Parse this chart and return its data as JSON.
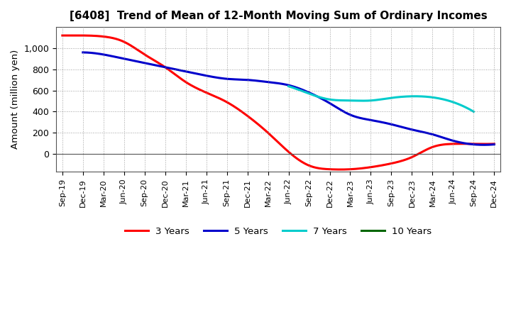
{
  "title": "[6408]  Trend of Mean of 12-Month Moving Sum of Ordinary Incomes",
  "ylabel": "Amount (million yen)",
  "background_color": "#ffffff",
  "grid_color": "#888888",
  "x_labels": [
    "Sep-19",
    "Dec-19",
    "Mar-20",
    "Jun-20",
    "Sep-20",
    "Dec-20",
    "Mar-21",
    "Jun-21",
    "Sep-21",
    "Dec-21",
    "Mar-22",
    "Jun-22",
    "Sep-22",
    "Dec-22",
    "Mar-23",
    "Jun-23",
    "Sep-23",
    "Dec-23",
    "Mar-24",
    "Jun-24",
    "Sep-24",
    "Dec-24"
  ],
  "ylim": [
    -170,
    1200
  ],
  "yticks": [
    0,
    200,
    400,
    600,
    800,
    1000
  ],
  "ytick_labels": [
    "0",
    "200",
    "400",
    "600",
    "800",
    "1,000"
  ],
  "series": {
    "3 Years": {
      "color": "#ff0000",
      "data": [
        1120,
        1120,
        1110,
        1060,
        940,
        820,
        680,
        580,
        490,
        360,
        200,
        20,
        -110,
        -145,
        -145,
        -125,
        -90,
        -30,
        65,
        95,
        95,
        95
      ]
    },
    "5 Years": {
      "color": "#0000cc",
      "data": [
        null,
        960,
        940,
        900,
        860,
        820,
        780,
        740,
        710,
        700,
        680,
        650,
        580,
        480,
        370,
        320,
        280,
        230,
        185,
        125,
        90,
        90
      ]
    },
    "7 Years": {
      "color": "#00cccc",
      "data": [
        null,
        null,
        null,
        null,
        null,
        null,
        null,
        null,
        null,
        null,
        null,
        640,
        570,
        515,
        505,
        505,
        530,
        545,
        535,
        490,
        400,
        null
      ]
    },
    "10 Years": {
      "color": "#006600",
      "data": [
        null,
        null,
        null,
        null,
        null,
        null,
        null,
        null,
        null,
        null,
        null,
        null,
        null,
        null,
        null,
        null,
        null,
        null,
        null,
        null,
        null,
        null
      ]
    }
  },
  "legend_labels": [
    "3 Years",
    "5 Years",
    "7 Years",
    "10 Years"
  ]
}
